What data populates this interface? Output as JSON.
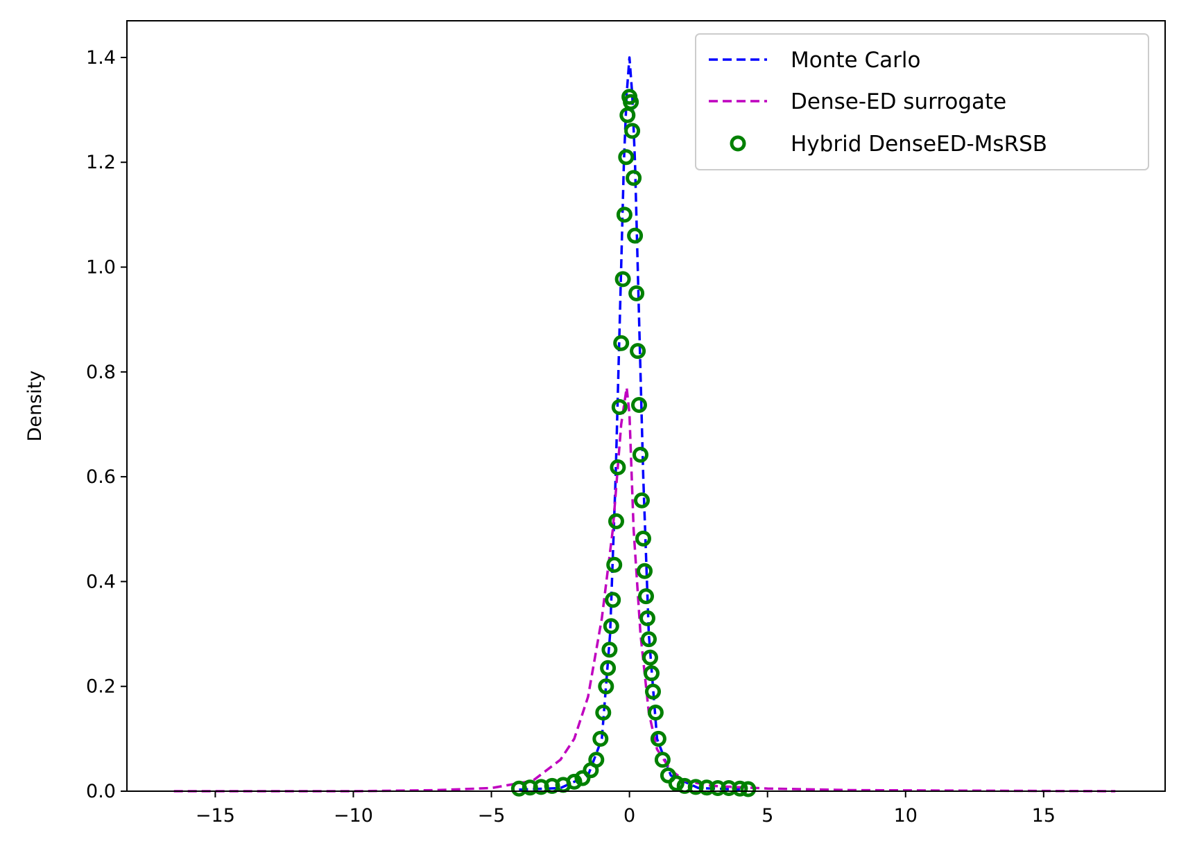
{
  "chart_data": {
    "type": "line",
    "title": "",
    "xlabel": "",
    "ylabel": "Density",
    "xlim": [
      -18.2,
      19.4
    ],
    "ylim": [
      0.0,
      1.47
    ],
    "xticks": [
      -15,
      -10,
      -5,
      0,
      5,
      10,
      15
    ],
    "xtick_labels": [
      "−15",
      "−10",
      "−5",
      "0",
      "5",
      "10",
      "15"
    ],
    "yticks": [
      0.0,
      0.2,
      0.4,
      0.6,
      0.8,
      1.0,
      1.2,
      1.4
    ],
    "ytick_labels": [
      "0.0",
      "0.2",
      "0.4",
      "0.6",
      "0.8",
      "1.0",
      "1.2",
      "1.4"
    ],
    "grid": false,
    "legend_position": "top-right",
    "series": [
      {
        "name": "Monte Carlo",
        "style": "dashed-line",
        "color": "#0000ff",
        "x": [
          -4.0,
          -2.5,
          -1.5,
          -1.0,
          -0.7,
          -0.5,
          -0.35,
          -0.2,
          -0.1,
          0.0,
          0.1,
          0.2,
          0.35,
          0.5,
          0.7,
          1.0,
          1.5,
          2.5,
          4.0
        ],
        "y": [
          0.003,
          0.006,
          0.03,
          0.1,
          0.3,
          0.6,
          0.9,
          1.2,
          1.33,
          1.4,
          1.33,
          1.2,
          0.9,
          0.6,
          0.3,
          0.1,
          0.03,
          0.006,
          0.003
        ]
      },
      {
        "name": "Dense-ED surrogate",
        "style": "dashed-line",
        "color": "#bf00bf",
        "x": [
          -16.5,
          -10.0,
          -7.0,
          -5.0,
          -3.5,
          -2.5,
          -2.0,
          -1.5,
          -1.0,
          -0.6,
          -0.3,
          -0.1,
          0.0,
          0.15,
          0.4,
          0.7,
          1.0,
          1.5,
          2.0,
          3.0,
          5.0,
          8.0,
          12.0,
          17.6
        ],
        "y": [
          0.0,
          0.0,
          0.002,
          0.006,
          0.02,
          0.06,
          0.1,
          0.18,
          0.33,
          0.5,
          0.7,
          0.77,
          0.72,
          0.5,
          0.3,
          0.15,
          0.08,
          0.04,
          0.02,
          0.01,
          0.005,
          0.002,
          0.001,
          0.0
        ]
      },
      {
        "name": "Hybrid DenseED-MsRSB",
        "style": "open-circles",
        "color": "#008000",
        "x": [
          -4.0,
          -3.6,
          -3.2,
          -2.8,
          -2.4,
          -2.0,
          -1.7,
          -1.4,
          -1.2,
          -1.05,
          -0.95,
          -0.85,
          -0.78,
          -0.72,
          -0.66,
          -0.6,
          -0.55,
          -0.48,
          -0.42,
          -0.36,
          -0.3,
          -0.24,
          -0.18,
          -0.12,
          -0.07,
          0.0,
          0.05,
          0.1,
          0.15,
          0.2,
          0.25,
          0.3,
          0.35,
          0.4,
          0.45,
          0.5,
          0.55,
          0.6,
          0.65,
          0.7,
          0.75,
          0.8,
          0.85,
          0.95,
          1.05,
          1.2,
          1.4,
          1.7,
          2.0,
          2.4,
          2.8,
          3.2,
          3.6,
          4.0,
          4.3
        ],
        "y": [
          0.005,
          0.007,
          0.008,
          0.01,
          0.012,
          0.018,
          0.025,
          0.04,
          0.06,
          0.1,
          0.15,
          0.2,
          0.235,
          0.27,
          0.315,
          0.365,
          0.432,
          0.515,
          0.618,
          0.733,
          0.855,
          0.977,
          1.1,
          1.21,
          1.29,
          1.325,
          1.315,
          1.26,
          1.17,
          1.06,
          0.95,
          0.84,
          0.737,
          0.642,
          0.555,
          0.482,
          0.42,
          0.372,
          0.33,
          0.29,
          0.255,
          0.225,
          0.19,
          0.15,
          0.1,
          0.06,
          0.03,
          0.015,
          0.01,
          0.008,
          0.007,
          0.006,
          0.006,
          0.005,
          0.004
        ]
      }
    ]
  }
}
